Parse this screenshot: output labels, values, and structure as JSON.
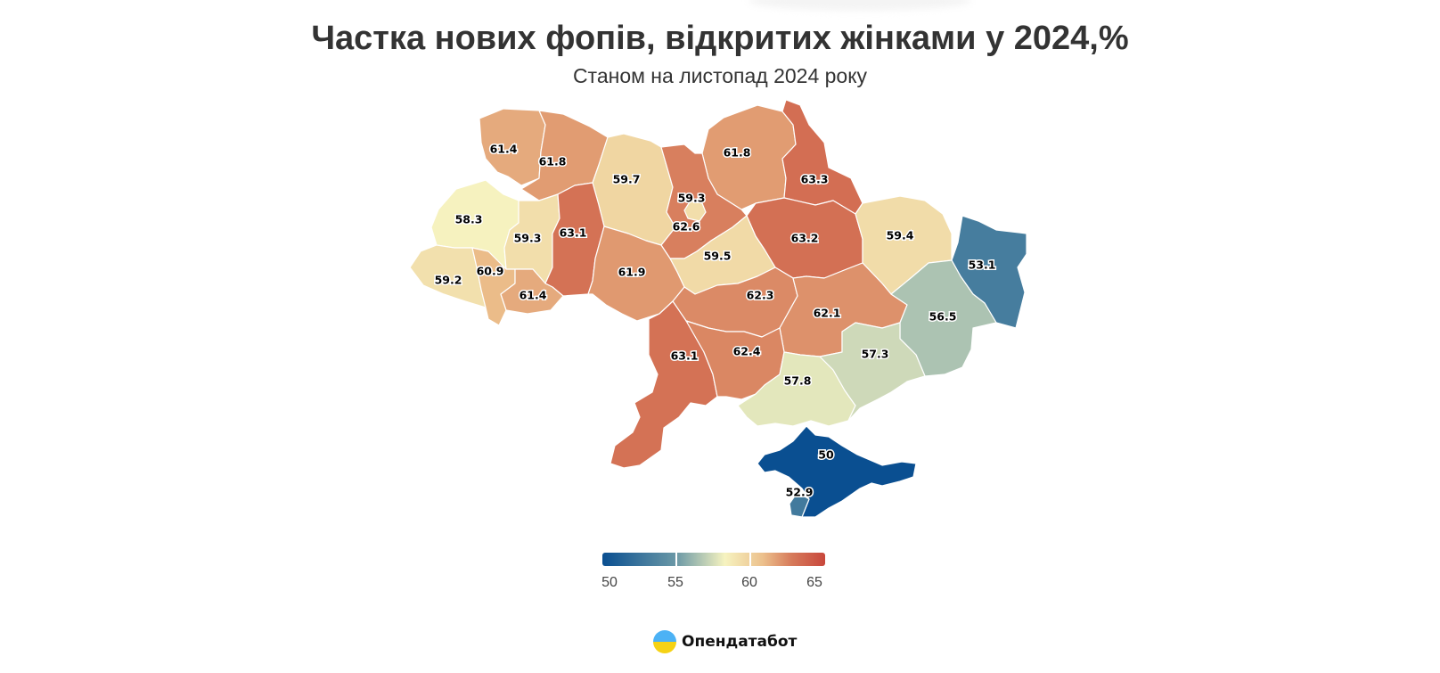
{
  "title": "Частка нових фопів, відкритих жінками у 2024,%",
  "subtitle": "Станом на листопад 2024 року",
  "brand": {
    "name": "Опендатабот",
    "logo_icon": "opendatabot-logo-icon"
  },
  "colors": {
    "low": "#0a4f91",
    "mid": "#f6f3c0",
    "high": "#c8473c"
  },
  "legend": {
    "min": 50,
    "max": 65,
    "ticks": [
      "50",
      "55",
      "60",
      "65"
    ]
  },
  "chart_data": {
    "type": "choropleth",
    "regions": [
      {
        "id": "volyn",
        "value": "61.4"
      },
      {
        "id": "rivne",
        "value": "61.8"
      },
      {
        "id": "zhytomyr",
        "value": "59.7"
      },
      {
        "id": "kyiv-oblast",
        "value": "62.6"
      },
      {
        "id": "kyiv-city",
        "value": "59.3"
      },
      {
        "id": "chernihiv",
        "value": "61.8"
      },
      {
        "id": "sumy",
        "value": "63.3"
      },
      {
        "id": "kharkiv",
        "value": "63.2"
      },
      {
        "id": "luhansk",
        "value": "53.1"
      },
      {
        "id": "lviv",
        "value": "58.3"
      },
      {
        "id": "ternopil",
        "value": "59.3"
      },
      {
        "id": "khmelnytskyi",
        "value": "63.1"
      },
      {
        "id": "vinnytsia",
        "value": "61.9"
      },
      {
        "id": "cherkasy",
        "value": "59.5"
      },
      {
        "id": "poltava",
        "value": "59.4"
      },
      {
        "id": "zakarpattia",
        "value": "59.2"
      },
      {
        "id": "ivano-frankivsk",
        "value": "60.9"
      },
      {
        "id": "chernivtsi",
        "value": "61.4"
      },
      {
        "id": "kirovohrad",
        "value": "62.3"
      },
      {
        "id": "dnipropetrovsk",
        "value": "62.1"
      },
      {
        "id": "donetsk",
        "value": "56.5"
      },
      {
        "id": "odesa",
        "value": "63.1"
      },
      {
        "id": "mykolaiv",
        "value": "62.4"
      },
      {
        "id": "kherson",
        "value": "57.8"
      },
      {
        "id": "zaporizhzhia",
        "value": "57.3"
      },
      {
        "id": "crimea",
        "value": "50"
      },
      {
        "id": "sevastopol",
        "value": "52.9"
      }
    ]
  }
}
